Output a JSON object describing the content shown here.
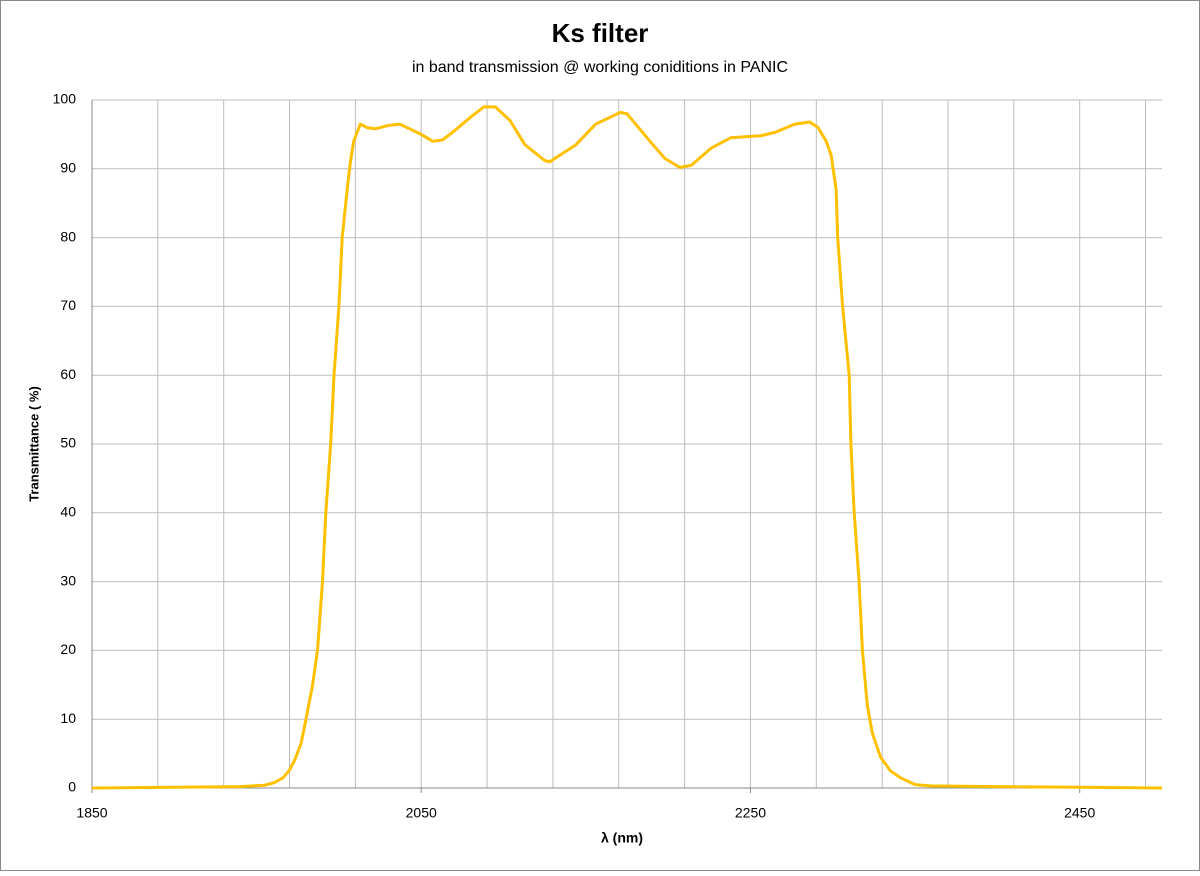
{
  "chart_data": {
    "type": "line",
    "title": "Ks filter",
    "subtitle": "in band transmission  @ working coniditions in PANIC",
    "xlabel": "λ (nm)",
    "ylabel": "Transmittance ( %)",
    "color": "#ffc000",
    "x": [
      1850,
      1900,
      1940,
      1955,
      1961,
      1966,
      1970,
      1973,
      1977,
      1980,
      1984,
      1987,
      1990,
      1992,
      1995,
      1997,
      2000,
      2002,
      2005,
      2007,
      2009,
      2013,
      2017,
      2022,
      2030,
      2037,
      2050,
      2057,
      2063,
      2070,
      2080,
      2088,
      2095,
      2104,
      2113,
      2125,
      2128,
      2144,
      2156,
      2171,
      2175,
      2189,
      2198,
      2207,
      2214,
      2226,
      2238,
      2256,
      2265,
      2277,
      2286,
      2291,
      2296,
      2299,
      2302,
      2303,
      2306,
      2310,
      2311,
      2313,
      2316,
      2318,
      2321,
      2324,
      2329,
      2335,
      2341,
      2350,
      2359,
      2400,
      2450,
      2500
    ],
    "values": [
      0,
      0.1,
      0.2,
      0.4,
      0.8,
      1.5,
      2.6,
      4,
      6.5,
      10,
      15,
      20,
      30,
      40,
      50,
      60,
      70,
      80,
      87,
      91,
      94,
      96.5,
      96,
      95.8,
      96.3,
      96.5,
      95,
      94,
      94.2,
      95.5,
      97.5,
      99,
      99,
      97,
      93.5,
      91.2,
      91,
      93.5,
      96.5,
      98.2,
      98,
      94,
      91.5,
      90.2,
      90.5,
      93,
      94.5,
      94.8,
      95.3,
      96.5,
      96.8,
      96,
      94,
      92,
      87,
      80,
      70,
      60,
      50,
      40,
      30,
      20,
      12,
      8,
      4.5,
      2.5,
      1.5,
      0.5,
      0.3,
      0.2,
      0.1,
      0
    ],
    "xlim": [
      1850,
      2500
    ],
    "xticks": [
      1850,
      2050,
      2250,
      2450
    ],
    "xgrid": [
      1850,
      1890,
      1930,
      1970,
      2010,
      2050,
      2090,
      2130,
      2170,
      2210,
      2250,
      2290,
      2330,
      2370,
      2410,
      2450,
      2490
    ],
    "ylim": [
      0,
      100
    ],
    "yticks": [
      0,
      10,
      20,
      30,
      40,
      50,
      60,
      70,
      80,
      90,
      100
    ],
    "grid": true
  }
}
